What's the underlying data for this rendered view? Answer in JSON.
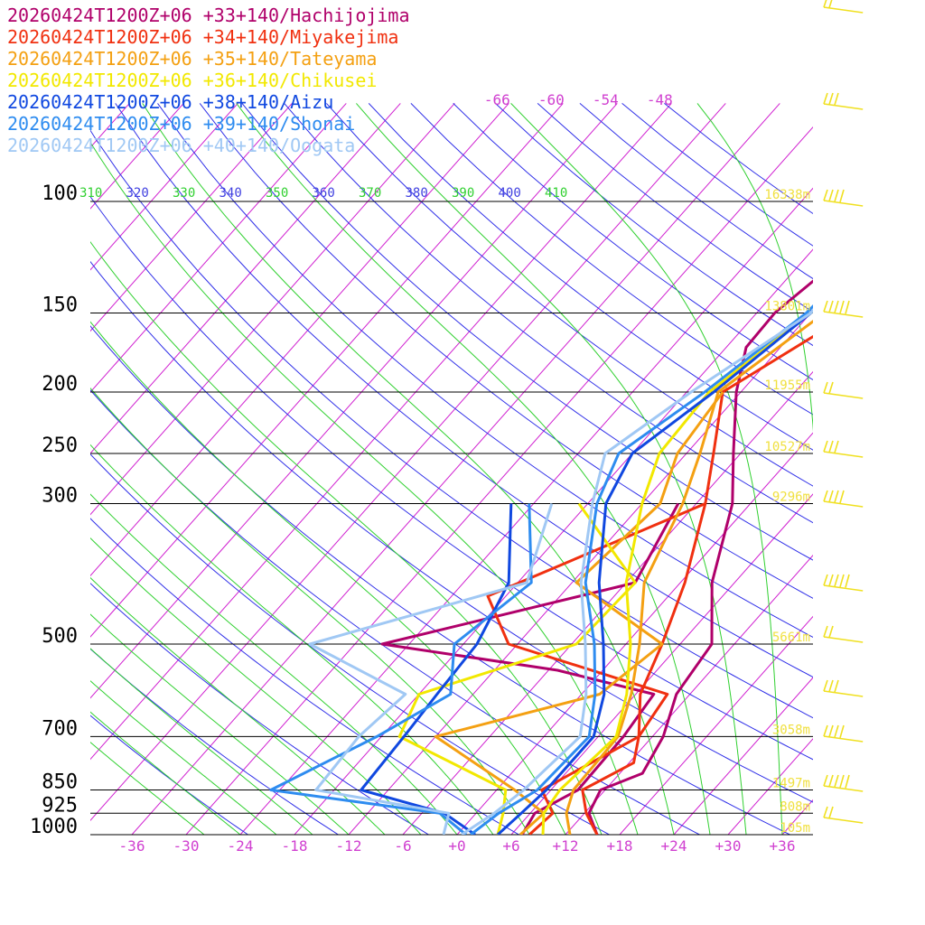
{
  "chart_data": {
    "type": "line",
    "title": "",
    "legend_position": "top-left",
    "legend": [
      {
        "label": "20260424T1200Z+06 +33+140/Hachijojima",
        "color": "#b0006a"
      },
      {
        "label": "20260424T1200Z+06 +34+140/Miyakejima",
        "color": "#f03010"
      },
      {
        "label": "20260424T1200Z+06 +35+140/Tateyama",
        "color": "#f4a012"
      },
      {
        "label": "20260424T1200Z+06 +36+140/Chikusei",
        "color": "#f2e800"
      },
      {
        "label": "20260424T1200Z+06 +38+140/Aizu",
        "color": "#1048e0"
      },
      {
        "label": "20260424T1200Z+06 +39+140/Shonai",
        "color": "#2e8cf0"
      },
      {
        "label": "20260424T1200Z+06 +40+140/Oogata",
        "color": "#a0c8f4"
      }
    ],
    "pressure_levels": [
      {
        "p": 100,
        "label": "100",
        "height": "16338m"
      },
      {
        "p": 150,
        "label": "150",
        "height": "13801m"
      },
      {
        "p": 200,
        "label": "200",
        "height": "11955m"
      },
      {
        "p": 250,
        "label": "250",
        "height": "10527m"
      },
      {
        "p": 300,
        "label": "300",
        "height": "9296m"
      },
      {
        "p": 500,
        "label": "500",
        "height": "5661m"
      },
      {
        "p": 700,
        "label": "700",
        "height": "3058m"
      },
      {
        "p": 850,
        "label": "850",
        "height": "1497m"
      },
      {
        "p": 925,
        "label": "925",
        "height": "808m"
      },
      {
        "p": 1000,
        "label": "1000",
        "height": "105m"
      }
    ],
    "x_ticks": [
      "-36",
      "-30",
      "-24",
      "-18",
      "-12",
      "-6",
      "+0",
      "+6",
      "+12",
      "+18",
      "+24",
      "+30",
      "+36"
    ],
    "x_tick_values": [
      -36,
      -30,
      -24,
      -18,
      -12,
      -6,
      0,
      6,
      12,
      18,
      24,
      30,
      36
    ],
    "upper_ticks": [
      "-66",
      "-60",
      "-54",
      "-48"
    ],
    "upper_tick_values": [
      -66,
      -60,
      -54,
      -48
    ],
    "theta_labels": [
      "310",
      "320",
      "330",
      "340",
      "350",
      "360",
      "370",
      "380",
      "390",
      "400",
      "410"
    ],
    "theta_values": [
      310,
      320,
      330,
      340,
      350,
      360,
      370,
      380,
      390,
      400,
      410
    ],
    "xlim": [
      -40,
      40
    ],
    "ylim": [
      1000,
      100
    ],
    "colors": {
      "isotherm": "#d020d0",
      "isobar": "#000000",
      "dry_adiabat": "#3030e8",
      "moist_adiabat": "#30d030",
      "height_label": "#f0e040",
      "wind_barb": "#f0e020",
      "axis_label": "#d040d0"
    },
    "series": [
      {
        "name": "20260424T1200Z+06 +33+140/Hachijojima",
        "color": "#b0006a",
        "temperature": [
          [
            1000,
            15.5
          ],
          [
            925,
            12.5
          ],
          [
            850,
            11.5
          ],
          [
            800,
            14.5
          ],
          [
            700,
            13.2
          ],
          [
            600,
            10.5
          ],
          [
            500,
            9.5
          ],
          [
            400,
            3.5
          ],
          [
            300,
            -2.0
          ],
          [
            250,
            -6.8
          ],
          [
            200,
            -12.5
          ],
          [
            170,
            -15.8
          ],
          [
            150,
            -16.0
          ],
          [
            110,
            -13.0
          ],
          [
            100,
            -11.0
          ],
          [
            70,
            -2.0
          ]
        ],
        "dewpoint": [
          [
            1000,
            7.2
          ],
          [
            925,
            6.5
          ],
          [
            850,
            9.0
          ],
          [
            700,
            8.8
          ],
          [
            600,
            8.0
          ],
          [
            550,
            -5.0
          ],
          [
            500,
            -27.0
          ],
          [
            400,
            -5.0
          ],
          [
            300,
            -8.0
          ]
        ]
      },
      {
        "name": "20260424T1200Z+06 +34+140/Miyakejima",
        "color": "#f03010",
        "temperature": [
          [
            1000,
            15.5
          ],
          [
            925,
            12.2
          ],
          [
            850,
            9.5
          ],
          [
            770,
            12.5
          ],
          [
            700,
            10.5
          ],
          [
            600,
            6.5
          ],
          [
            500,
            4.0
          ],
          [
            400,
            0.5
          ],
          [
            300,
            -5.0
          ],
          [
            250,
            -9.0
          ],
          [
            200,
            -14.0
          ],
          [
            150,
            -7.5
          ],
          [
            100,
            -4.5
          ],
          [
            70,
            1.0
          ]
        ],
        "dewpoint": [
          [
            1000,
            8.0
          ],
          [
            925,
            8.5
          ],
          [
            850,
            5.0
          ],
          [
            700,
            10.5
          ],
          [
            600,
            9.5
          ],
          [
            500,
            -13.0
          ],
          [
            420,
            -20.0
          ],
          [
            300,
            -5.0
          ]
        ]
      },
      {
        "name": "20260424T1200Z+06 +35+140/Tateyama",
        "color": "#f4a012",
        "temperature": [
          [
            1000,
            12.5
          ],
          [
            925,
            10.0
          ],
          [
            850,
            8.5
          ],
          [
            700,
            8.2
          ],
          [
            600,
            5.5
          ],
          [
            500,
            1.5
          ],
          [
            400,
            -4.0
          ],
          [
            300,
            -7.5
          ],
          [
            250,
            -10.5
          ],
          [
            200,
            -14.5
          ],
          [
            150,
            -10.5
          ],
          [
            100,
            -7.5
          ],
          [
            70,
            -2.0
          ]
        ],
        "dewpoint": [
          [
            1000,
            7.0
          ],
          [
            925,
            7.5
          ],
          [
            850,
            2.0
          ],
          [
            700,
            -12.0
          ],
          [
            600,
            2.0
          ],
          [
            500,
            4.0
          ],
          [
            400,
            -11.5
          ],
          [
            300,
            -10.0
          ],
          [
            250,
            -13.0
          ],
          [
            200,
            -14.0
          ]
        ]
      },
      {
        "name": "20260424T1200Z+06 +36+140/Chikusei",
        "color": "#f2e800",
        "temperature": [
          [
            1000,
            9.5
          ],
          [
            925,
            7.5
          ],
          [
            850,
            7.0
          ],
          [
            700,
            8.0
          ],
          [
            600,
            5.0
          ],
          [
            500,
            0.5
          ],
          [
            400,
            -6.0
          ],
          [
            300,
            -12.0
          ],
          [
            250,
            -15.0
          ],
          [
            200,
            -15.5
          ],
          [
            150,
            -12.0
          ],
          [
            100,
            -8.0
          ],
          [
            70,
            -3.0
          ]
        ],
        "dewpoint": [
          [
            1000,
            4.5
          ],
          [
            925,
            3.0
          ],
          [
            850,
            1.0
          ],
          [
            700,
            -16.0
          ],
          [
            600,
            -18.0
          ],
          [
            500,
            -5.5
          ],
          [
            400,
            -5.0
          ],
          [
            300,
            -19.0
          ]
        ]
      },
      {
        "name": "20260424T1200Z+06 +38+140/Aizu",
        "color": "#1048e0",
        "temperature": [
          [
            1000,
            4.5
          ],
          [
            925,
            5.0
          ],
          [
            850,
            5.5
          ],
          [
            700,
            5.5
          ],
          [
            600,
            2.5
          ],
          [
            500,
            -2.5
          ],
          [
            400,
            -9.0
          ],
          [
            300,
            -16.0
          ],
          [
            250,
            -18.0
          ],
          [
            200,
            -15.0
          ],
          [
            150,
            -12.0
          ],
          [
            100,
            -10.5
          ],
          [
            70,
            -6.0
          ]
        ],
        "dewpoint": [
          [
            1000,
            2.0
          ],
          [
            925,
            -3.5
          ],
          [
            850,
            -15.0
          ],
          [
            700,
            -15.5
          ],
          [
            600,
            -16.0
          ],
          [
            500,
            -16.5
          ],
          [
            400,
            -19.0
          ],
          [
            300,
            -26.5
          ]
        ]
      },
      {
        "name": "20260424T1200Z+06 +39+140/Shonai",
        "color": "#2e8cf0",
        "temperature": [
          [
            1000,
            1.5
          ],
          [
            925,
            2.5
          ],
          [
            850,
            4.5
          ],
          [
            700,
            5.0
          ],
          [
            600,
            1.5
          ],
          [
            500,
            -3.5
          ],
          [
            400,
            -10.5
          ],
          [
            300,
            -17.0
          ],
          [
            250,
            -19.5
          ],
          [
            200,
            -16.0
          ],
          [
            150,
            -12.5
          ],
          [
            100,
            -11.0
          ],
          [
            70,
            -7.0
          ]
        ],
        "dewpoint": [
          [
            1000,
            1.0
          ],
          [
            925,
            -4.0
          ],
          [
            850,
            -25.0
          ],
          [
            700,
            -18.5
          ],
          [
            600,
            -14.5
          ],
          [
            500,
            -19.0
          ],
          [
            400,
            -16.5
          ],
          [
            300,
            -24.5
          ]
        ]
      },
      {
        "name": "20260424T1200Z+06 +40+140/Oogata",
        "color": "#a0c8f4",
        "temperature": [
          [
            1000,
            0.5
          ],
          [
            925,
            2.0
          ],
          [
            850,
            3.0
          ],
          [
            700,
            4.0
          ],
          [
            600,
            0.5
          ],
          [
            500,
            -4.5
          ],
          [
            400,
            -11.0
          ],
          [
            300,
            -17.5
          ],
          [
            250,
            -21.0
          ],
          [
            200,
            -17.5
          ],
          [
            150,
            -12.0
          ],
          [
            100,
            -11.5
          ],
          [
            70,
            -8.0
          ]
        ],
        "dewpoint": [
          [
            1000,
            -1.5
          ],
          [
            925,
            -3.0
          ],
          [
            850,
            -20.0
          ],
          [
            700,
            -20.5
          ],
          [
            600,
            -19.5
          ],
          [
            500,
            -35.0
          ],
          [
            400,
            -17.0
          ],
          [
            300,
            -22.0
          ]
        ]
      }
    ]
  }
}
